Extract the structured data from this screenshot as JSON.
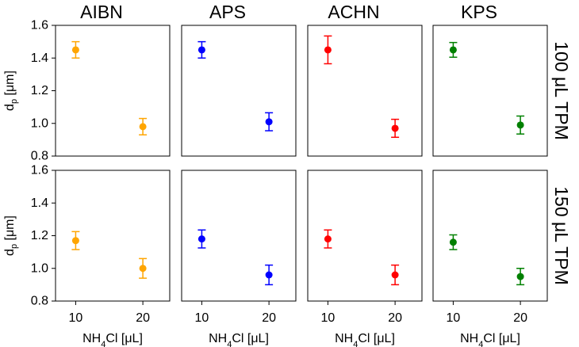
{
  "chart_data": {
    "type": "scatter",
    "layout": "grid 2 rows x 4 columns, shared axes",
    "columns": [
      {
        "label": "AIBN",
        "color": "#FFA500"
      },
      {
        "label": "APS",
        "color": "#0000FF"
      },
      {
        "label": "ACHN",
        "color": "#FF0000"
      },
      {
        "label": "KPS",
        "color": "#008000"
      }
    ],
    "rows": [
      {
        "label": "100 μL TPM"
      },
      {
        "label": "150 μL TPM"
      }
    ],
    "x": [
      10,
      20
    ],
    "xticks": [
      "10",
      "20"
    ],
    "xlim": [
      7,
      24
    ],
    "xlabel": {
      "base": "NH",
      "sub": "4",
      "rest": "Cl [μL]"
    },
    "ylabel": {
      "base": "d",
      "sub": "p",
      "rest": " [μm]"
    },
    "ylim": [
      0.8,
      1.6
    ],
    "yticks": [
      "0.8",
      "1.0",
      "1.2",
      "1.4",
      "1.6"
    ],
    "grid": false,
    "panels": [
      {
        "row": 0,
        "col": 0,
        "points": [
          {
            "x": 10,
            "y": 1.45,
            "err": 0.05
          },
          {
            "x": 20,
            "y": 0.98,
            "err": 0.05
          }
        ]
      },
      {
        "row": 0,
        "col": 1,
        "points": [
          {
            "x": 10,
            "y": 1.45,
            "err": 0.05
          },
          {
            "x": 20,
            "y": 1.01,
            "err": 0.055
          }
        ]
      },
      {
        "row": 0,
        "col": 2,
        "points": [
          {
            "x": 10,
            "y": 1.45,
            "err": 0.085
          },
          {
            "x": 20,
            "y": 0.97,
            "err": 0.055
          }
        ]
      },
      {
        "row": 0,
        "col": 3,
        "points": [
          {
            "x": 10,
            "y": 1.45,
            "err": 0.045
          },
          {
            "x": 20,
            "y": 0.99,
            "err": 0.055
          }
        ]
      },
      {
        "row": 1,
        "col": 0,
        "points": [
          {
            "x": 10,
            "y": 1.17,
            "err": 0.055
          },
          {
            "x": 20,
            "y": 1.0,
            "err": 0.06
          }
        ]
      },
      {
        "row": 1,
        "col": 1,
        "points": [
          {
            "x": 10,
            "y": 1.18,
            "err": 0.055
          },
          {
            "x": 20,
            "y": 0.96,
            "err": 0.06
          }
        ]
      },
      {
        "row": 1,
        "col": 2,
        "points": [
          {
            "x": 10,
            "y": 1.18,
            "err": 0.055
          },
          {
            "x": 20,
            "y": 0.96,
            "err": 0.06
          }
        ]
      },
      {
        "row": 1,
        "col": 3,
        "points": [
          {
            "x": 10,
            "y": 1.16,
            "err": 0.045
          },
          {
            "x": 20,
            "y": 0.95,
            "err": 0.05
          }
        ]
      }
    ]
  }
}
